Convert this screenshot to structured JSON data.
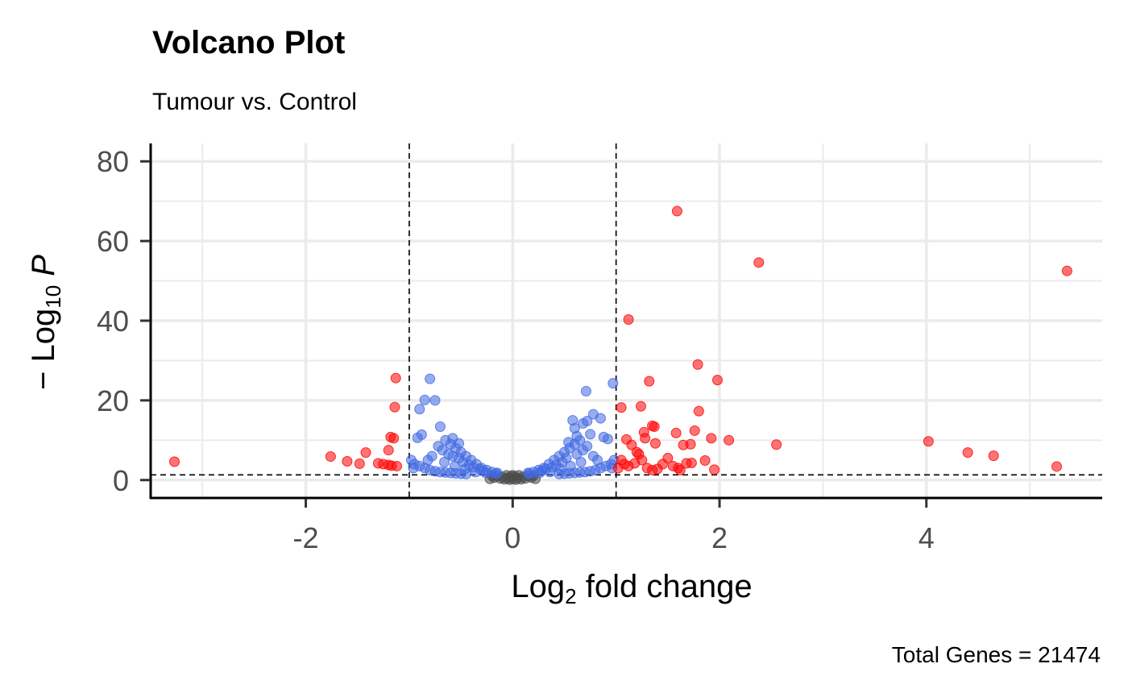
{
  "chart_data": {
    "type": "scatter",
    "title": "Volcano Plot",
    "subtitle": "Tumour vs. Control",
    "caption": "Total Genes = 21474",
    "xlabel": {
      "main": "Log",
      "sub": "2",
      "rest": " fold change"
    },
    "ylabel": {
      "prefix": "− Log",
      "sub": "10",
      "italic": "P"
    },
    "xlim": [
      -3.5,
      5.7
    ],
    "ylim": [
      -4.5,
      84.5
    ],
    "x_ticks": [
      -2,
      0,
      2,
      4
    ],
    "y_ticks": [
      0,
      20,
      40,
      60,
      80
    ],
    "grid": true,
    "thresholds": {
      "x": [
        -1,
        1
      ],
      "y": [
        1.3
      ]
    },
    "colors": {
      "ns": "#4d4d4d",
      "p_only": "#4169e1",
      "p_and_fc": "#ff0000",
      "gridline": "#ebebeb",
      "threshold_line": "#000000"
    },
    "series": [
      {
        "category": "ns",
        "color": "#4d4d4d",
        "points": [
          [
            0,
            0.3
          ],
          [
            0.05,
            0.5
          ],
          [
            -0.05,
            0.5
          ],
          [
            0.1,
            0.8
          ],
          [
            -0.1,
            0.8
          ],
          [
            0.15,
            1.0
          ],
          [
            -0.15,
            1.0
          ],
          [
            0.2,
            1.1
          ],
          [
            -0.2,
            1.1
          ],
          [
            0.02,
            0.9
          ],
          [
            -0.02,
            0.9
          ],
          [
            0.08,
            0.2
          ],
          [
            -0.08,
            0.2
          ],
          [
            0.12,
            0.4
          ],
          [
            -0.12,
            0.4
          ],
          [
            0,
            1.2
          ],
          [
            0.06,
            1.2
          ],
          [
            -0.06,
            1.2
          ],
          [
            0.18,
            0.6
          ],
          [
            -0.18,
            0.6
          ],
          [
            0.22,
            0.3
          ],
          [
            -0.22,
            0.3
          ],
          [
            0.03,
            0.1
          ],
          [
            -0.03,
            0.1
          ]
        ]
      },
      {
        "category": "p_only",
        "color": "#4169e1",
        "points": [
          [
            -0.8,
            25.4
          ],
          [
            -0.85,
            20.1
          ],
          [
            -0.9,
            17.8
          ],
          [
            -0.75,
            20.0
          ],
          [
            -0.7,
            13.4
          ],
          [
            -0.88,
            11.4
          ],
          [
            -0.92,
            10.6
          ],
          [
            -0.65,
            10.0
          ],
          [
            -0.6,
            9.0
          ],
          [
            -0.55,
            8.0
          ],
          [
            -0.5,
            7.0
          ],
          [
            -0.45,
            6.0
          ],
          [
            -0.4,
            5.0
          ],
          [
            -0.35,
            4.0
          ],
          [
            -0.3,
            3.0
          ],
          [
            -0.25,
            2.5
          ],
          [
            -0.2,
            2.0
          ],
          [
            -0.15,
            1.8
          ],
          [
            -0.98,
            5.0
          ],
          [
            -0.95,
            4.0
          ],
          [
            -0.9,
            3.5
          ],
          [
            -0.85,
            3.0
          ],
          [
            -0.8,
            2.5
          ],
          [
            -0.75,
            2.2
          ],
          [
            -0.7,
            2.0
          ],
          [
            -0.65,
            1.9
          ],
          [
            -0.6,
            1.8
          ],
          [
            -0.55,
            1.7
          ],
          [
            -0.5,
            1.6
          ],
          [
            -0.45,
            1.5
          ],
          [
            -0.72,
            8.5
          ],
          [
            -0.68,
            7.5
          ],
          [
            -0.62,
            6.5
          ],
          [
            -0.58,
            6.0
          ],
          [
            -0.52,
            5.5
          ],
          [
            -0.48,
            4.5
          ],
          [
            -0.42,
            3.8
          ],
          [
            -0.38,
            3.2
          ],
          [
            -0.32,
            2.8
          ],
          [
            -0.28,
            2.3
          ],
          [
            -0.78,
            6.0
          ],
          [
            -0.82,
            5.0
          ],
          [
            -0.96,
            3.0
          ],
          [
            -0.66,
            4.5
          ],
          [
            -0.56,
            3.5
          ],
          [
            -0.46,
            2.8
          ],
          [
            -0.36,
            2.0
          ],
          [
            -0.26,
            1.8
          ],
          [
            -0.16,
            1.6
          ],
          [
            0.15,
            1.8
          ],
          [
            0.2,
            2.0
          ],
          [
            0.25,
            2.5
          ],
          [
            0.3,
            3.0
          ],
          [
            0.35,
            4.0
          ],
          [
            0.4,
            5.0
          ],
          [
            0.45,
            6.0
          ],
          [
            0.5,
            7.0
          ],
          [
            0.55,
            8.0
          ],
          [
            0.6,
            9.0
          ],
          [
            0.65,
            10.0
          ],
          [
            0.58,
            15.0
          ],
          [
            0.6,
            13.0
          ],
          [
            0.68,
            14.2
          ],
          [
            0.72,
            14.8
          ],
          [
            0.78,
            16.5
          ],
          [
            0.85,
            15.5
          ],
          [
            0.71,
            22.3
          ],
          [
            0.97,
            24.3
          ],
          [
            0.88,
            10.8
          ],
          [
            0.92,
            10.3
          ],
          [
            0.75,
            11.5
          ],
          [
            0.98,
            5.0
          ],
          [
            0.95,
            4.0
          ],
          [
            0.9,
            3.5
          ],
          [
            0.85,
            3.0
          ],
          [
            0.8,
            2.5
          ],
          [
            0.75,
            2.2
          ],
          [
            0.7,
            2.0
          ],
          [
            0.65,
            1.9
          ],
          [
            0.6,
            1.8
          ],
          [
            0.55,
            1.7
          ],
          [
            0.5,
            1.6
          ],
          [
            0.45,
            1.5
          ],
          [
            0.72,
            8.5
          ],
          [
            0.68,
            7.5
          ],
          [
            0.62,
            6.5
          ],
          [
            0.52,
            5.5
          ],
          [
            0.48,
            4.5
          ],
          [
            0.42,
            3.8
          ],
          [
            0.38,
            3.2
          ],
          [
            0.32,
            2.8
          ],
          [
            0.28,
            2.3
          ],
          [
            0.78,
            6.0
          ],
          [
            0.82,
            5.0
          ],
          [
            0.96,
            3.0
          ],
          [
            0.66,
            4.5
          ],
          [
            0.56,
            3.5
          ],
          [
            0.46,
            2.8
          ],
          [
            0.36,
            2.0
          ],
          [
            0.26,
            1.8
          ],
          [
            0.16,
            1.6
          ],
          [
            0.62,
            11.0
          ],
          [
            0.54,
            9.5
          ],
          [
            -0.58,
            10.5
          ],
          [
            -0.52,
            9.2
          ]
        ]
      },
      {
        "category": "p_and_fc",
        "color": "#ff0000",
        "points": [
          [
            -3.27,
            4.6
          ],
          [
            -1.76,
            5.9
          ],
          [
            -1.6,
            4.7
          ],
          [
            -1.48,
            4.1
          ],
          [
            -1.42,
            6.9
          ],
          [
            -1.3,
            4.2
          ],
          [
            -1.25,
            4.0
          ],
          [
            -1.2,
            3.8
          ],
          [
            -1.17,
            3.6
          ],
          [
            -1.12,
            3.5
          ],
          [
            -1.18,
            10.8
          ],
          [
            -1.15,
            10.5
          ],
          [
            -1.2,
            7.5
          ],
          [
            -1.14,
            18.3
          ],
          [
            -1.13,
            25.6
          ],
          [
            1.59,
            67.5
          ],
          [
            2.38,
            54.6
          ],
          [
            5.36,
            52.5
          ],
          [
            1.12,
            40.3
          ],
          [
            1.79,
            29.0
          ],
          [
            1.98,
            25.1
          ],
          [
            1.32,
            24.8
          ],
          [
            1.24,
            18.5
          ],
          [
            1.05,
            18.2
          ],
          [
            1.8,
            17.3
          ],
          [
            1.35,
            13.6
          ],
          [
            1.37,
            13.4
          ],
          [
            1.27,
            12.0
          ],
          [
            1.28,
            10.5
          ],
          [
            1.58,
            11.8
          ],
          [
            1.76,
            12.4
          ],
          [
            1.92,
            10.5
          ],
          [
            2.09,
            10.0
          ],
          [
            2.55,
            8.9
          ],
          [
            4.02,
            9.7
          ],
          [
            4.4,
            6.9
          ],
          [
            4.65,
            6.1
          ],
          [
            5.26,
            3.4
          ],
          [
            1.1,
            10.2
          ],
          [
            1.15,
            8.8
          ],
          [
            1.2,
            7.0
          ],
          [
            1.38,
            9.2
          ],
          [
            1.65,
            8.8
          ],
          [
            1.72,
            9.0
          ],
          [
            1.5,
            5.5
          ],
          [
            1.45,
            4.0
          ],
          [
            1.55,
            3.5
          ],
          [
            1.3,
            3.0
          ],
          [
            1.4,
            2.8
          ],
          [
            1.6,
            3.0
          ],
          [
            1.86,
            4.9
          ],
          [
            1.95,
            2.6
          ],
          [
            1.68,
            4.2
          ],
          [
            1.73,
            4.3
          ],
          [
            1.05,
            5.0
          ],
          [
            1.08,
            4.0
          ],
          [
            1.12,
            3.5
          ],
          [
            1.18,
            4.2
          ],
          [
            1.25,
            5.0
          ],
          [
            1.02,
            3.0
          ],
          [
            1.35,
            2.5
          ],
          [
            1.22,
            6.5
          ],
          [
            1.62,
            2.5
          ]
        ]
      }
    ]
  }
}
